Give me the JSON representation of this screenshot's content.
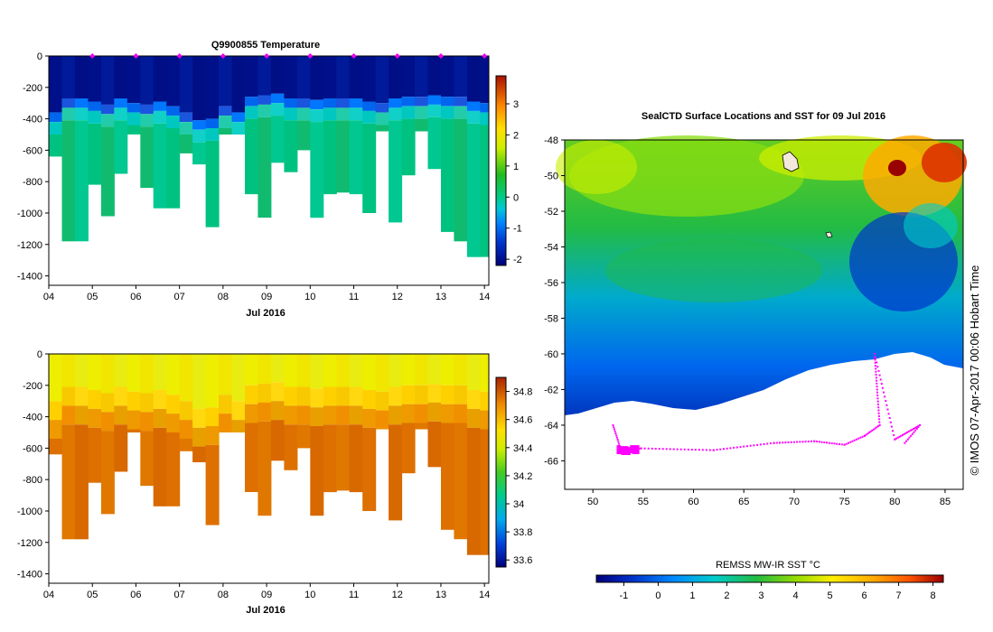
{
  "chart_data": [
    {
      "type": "heatmap",
      "name": "temperature-section",
      "title": "Q9900855  Temperature",
      "xlabel": "Jul 2016",
      "ylabel": "",
      "x_ticks": [
        "04",
        "05",
        "06",
        "07",
        "08",
        "09",
        "10",
        "11",
        "12",
        "13",
        "14"
      ],
      "y_ticks": [
        0,
        -200,
        -400,
        -600,
        -800,
        -1000,
        -1200,
        -1400
      ],
      "xlim": [
        4,
        14.1
      ],
      "ylim": [
        -1460,
        0
      ],
      "profile_markers_day": [
        5.0,
        6.0,
        7.0,
        8.0,
        9.0,
        10.0,
        11.0,
        12.0,
        13.0,
        14.0
      ],
      "colorbar": {
        "ticks": [
          -2,
          -1,
          0,
          1,
          2,
          3
        ],
        "range": [
          -2.2,
          3.9
        ]
      },
      "profile_days": [
        4.0,
        4.3,
        4.6,
        4.9,
        5.2,
        5.5,
        5.8,
        6.1,
        6.4,
        6.7,
        7.0,
        7.3,
        7.6,
        7.9,
        8.2,
        8.5,
        8.8,
        9.1,
        9.4,
        9.7,
        10.0,
        10.3,
        10.6,
        10.9,
        11.2,
        11.5,
        11.8,
        12.1,
        12.4,
        12.7,
        13.0,
        13.3,
        13.6,
        13.9
      ],
      "profile_max_depth": [
        -640,
        -1180,
        -1180,
        -820,
        -1020,
        -750,
        -500,
        -840,
        -970,
        -970,
        -620,
        -690,
        -1090,
        -500,
        -500,
        -880,
        -1030,
        -680,
        -740,
        -600,
        -1030,
        -880,
        -870,
        -880,
        -1000,
        -480,
        -1060,
        -760,
        -480,
        -720,
        -1120,
        -1180,
        -1280,
        -1280
      ],
      "profile_warm_top_depth": [
        -420,
        -330,
        -330,
        -350,
        -370,
        -330,
        -360,
        -370,
        -350,
        -380,
        -420,
        -470,
        -460,
        -380,
        -420,
        -320,
        -310,
        -300,
        -330,
        -330,
        -340,
        -330,
        -330,
        -330,
        -350,
        -360,
        -330,
        -320,
        -320,
        -310,
        -320,
        -320,
        -350,
        -360
      ]
    },
    {
      "type": "heatmap",
      "name": "salinity-section",
      "title": "",
      "xlabel": "Jul 2016",
      "x_ticks": [
        "04",
        "05",
        "06",
        "07",
        "08",
        "09",
        "10",
        "11",
        "12",
        "13",
        "14"
      ],
      "y_ticks": [
        0,
        -200,
        -400,
        -600,
        -800,
        -1000,
        -1200,
        -1400
      ],
      "xlim": [
        4,
        14.1
      ],
      "ylim": [
        -1460,
        0
      ],
      "colorbar": {
        "ticks": [
          33.6,
          33.8,
          34,
          34.2,
          34.4,
          34.6,
          34.8
        ],
        "range": [
          33.55,
          34.9
        ]
      },
      "profile_days": [
        4.0,
        4.3,
        4.6,
        4.9,
        5.2,
        5.5,
        5.8,
        6.1,
        6.4,
        6.7,
        7.0,
        7.3,
        7.6,
        7.9,
        8.2,
        8.5,
        8.8,
        9.1,
        9.4,
        9.7,
        10.0,
        10.3,
        10.6,
        10.9,
        11.2,
        11.5,
        11.8,
        12.1,
        12.4,
        12.7,
        13.0,
        13.3,
        13.6,
        13.9
      ],
      "profile_max_depth": [
        -640,
        -1180,
        -1180,
        -820,
        -1020,
        -750,
        -500,
        -840,
        -970,
        -970,
        -620,
        -690,
        -1090,
        -500,
        -500,
        -880,
        -1030,
        -680,
        -740,
        -600,
        -1030,
        -880,
        -870,
        -880,
        -1000,
        -480,
        -1060,
        -760,
        -480,
        -720,
        -1120,
        -1180,
        -1280,
        -1280
      ]
    },
    {
      "type": "heatmap",
      "name": "sst-map",
      "title": "SealCTD Surface Locations and SST for 09 Jul 2016",
      "xlabel": "",
      "ylabel": "",
      "x_ticks": [
        50,
        55,
        60,
        65,
        70,
        75,
        80,
        85
      ],
      "y_ticks": [
        -48,
        -50,
        -52,
        -54,
        -56,
        -58,
        -60,
        -62,
        -64,
        -66
      ],
      "xlim": [
        47.2,
        86.8
      ],
      "ylim": [
        -67.6,
        -48
      ],
      "colorbar": {
        "label": "REMSS MW-IR SST °C",
        "ticks": [
          -1,
          0,
          1,
          2,
          3,
          4,
          5,
          6,
          7,
          8
        ],
        "range": [
          -1.8,
          8.3
        ]
      },
      "track_color": "#ff00ff"
    }
  ],
  "side_label": "© IMOS 07-Apr-2017 00:06 Hobart Time"
}
